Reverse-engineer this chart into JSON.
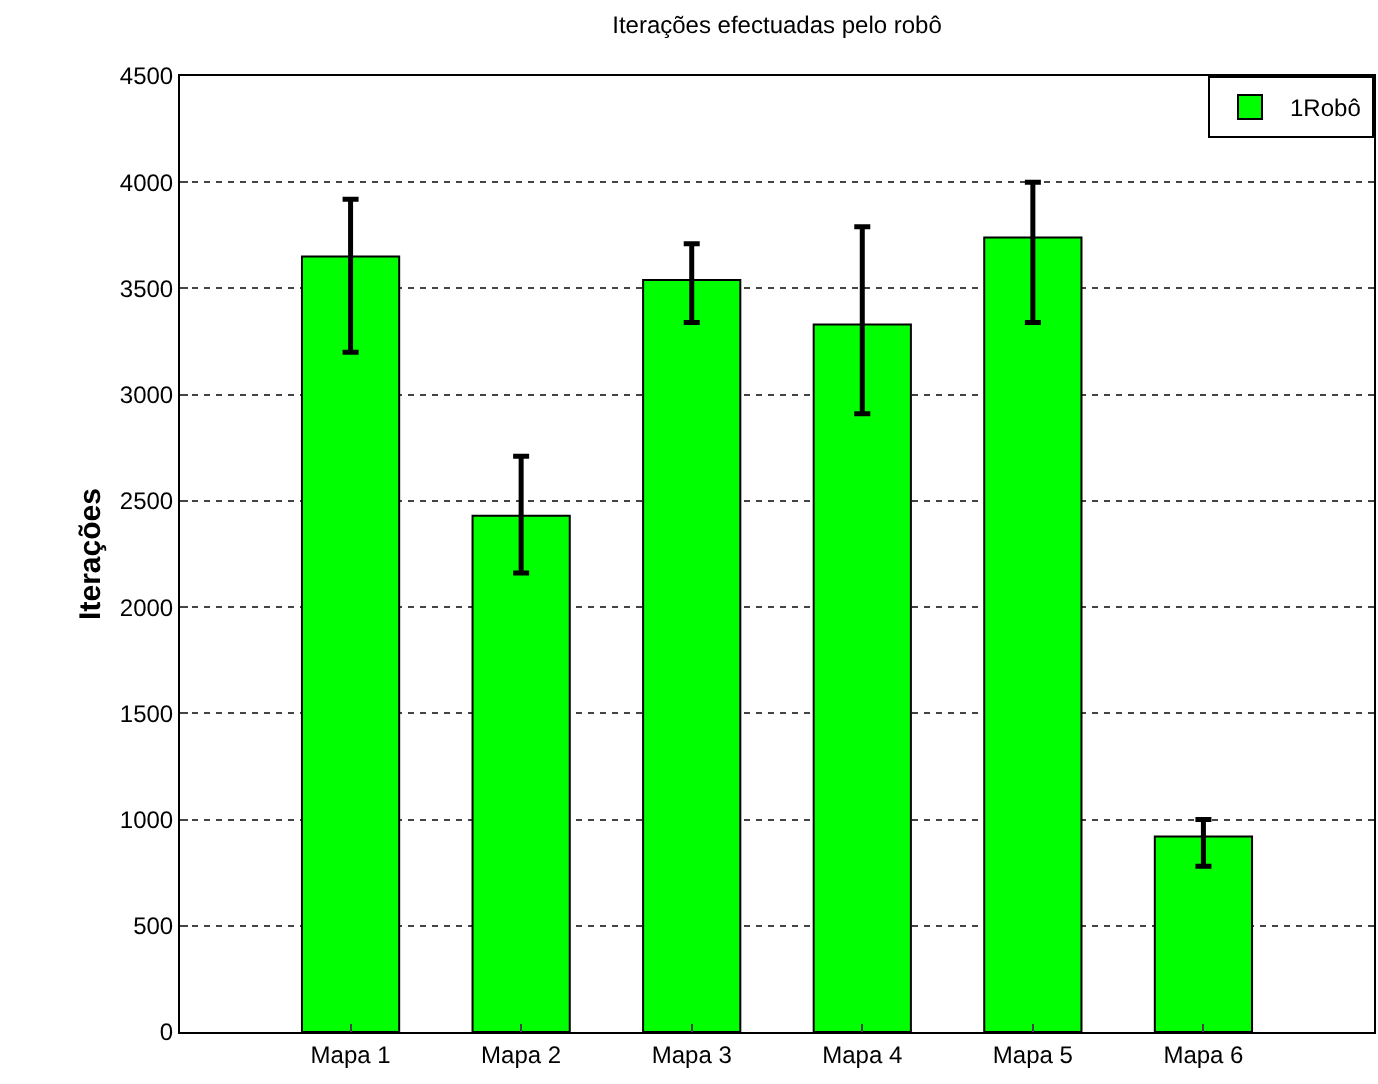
{
  "chart_data": {
    "type": "bar",
    "title": "Iterações efectuadas pelo robô",
    "ylabel": "Iterações",
    "categories": [
      "Mapa 1",
      "Mapa 2",
      "Mapa 3",
      "Mapa 4",
      "Mapa 5",
      "Mapa 6"
    ],
    "series": [
      {
        "name": "1Robô",
        "color": "#00ff00",
        "values": [
          3650,
          2430,
          3540,
          3330,
          3740,
          920
        ],
        "errors": [
          [
            3200,
            3920
          ],
          [
            2160,
            2710
          ],
          [
            3340,
            3710
          ],
          [
            2910,
            3790
          ],
          [
            3340,
            4000
          ],
          [
            780,
            1000
          ]
        ]
      }
    ],
    "ylim": [
      0,
      4500
    ],
    "yticks": [
      0,
      500,
      1000,
      1500,
      2000,
      2500,
      3000,
      3500,
      4000,
      4500
    ],
    "grid": "y",
    "legend": "top right"
  }
}
